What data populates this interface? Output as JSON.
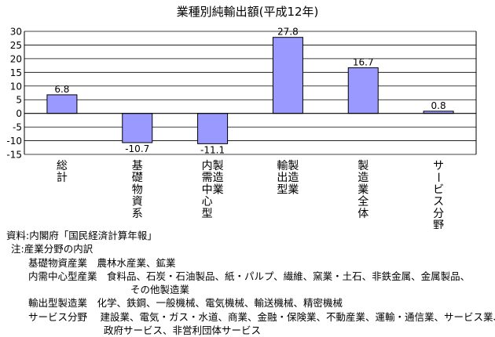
{
  "chart_data": {
    "type": "bar",
    "title": "業種別純輸出額(平成12年)",
    "categories": [
      "総計",
      "基礎物資系",
      "内需中心型製造業",
      "輸出型製造業",
      "製造業全体",
      "サービス分野"
    ],
    "category_lines": [
      [
        "総計"
      ],
      [
        "基礎物資系"
      ],
      [
        "製造業",
        "内需中心型"
      ],
      [
        "製造業",
        "輸出型"
      ],
      [
        "製造業全体"
      ],
      [
        "サービス分野"
      ]
    ],
    "values": [
      6.8,
      -10.7,
      -11.1,
      27.8,
      16.7,
      0.8
    ],
    "data_labels": [
      "6.8",
      "-10.7",
      "-11.1",
      "27.8",
      "16.7",
      "0.8"
    ],
    "y_ticks": [
      "30",
      "25",
      "20",
      "15",
      "10",
      "5",
      "0",
      "-5",
      "-10",
      "-15"
    ],
    "ylim": [
      -15,
      30
    ],
    "grid": true,
    "bar_color": "#9999ff",
    "xlabel": "",
    "ylabel": ""
  },
  "notes": {
    "source": "資料:内閣府「国民経済計算年報」",
    "note_title": "注:産業分野の内訳",
    "lines": [
      "基礎物資産業　農林水産業、鉱業",
      "内需中心型産業　食料品、石炭・石油製品、紙・パルプ、繊維、窯業・土石、非鉄金属、金属製品、",
      "その他製造業",
      "輸出型製造業　化学、鉄鋼、一般機械、電気機械、輸送機械、精密機械",
      "サービス分野　 建設業、電気・ガス・水道、商業、金融・保険業、不動産業、運輸・通信業、サービス業、",
      "政府サービス、非営利団体サービス"
    ]
  }
}
